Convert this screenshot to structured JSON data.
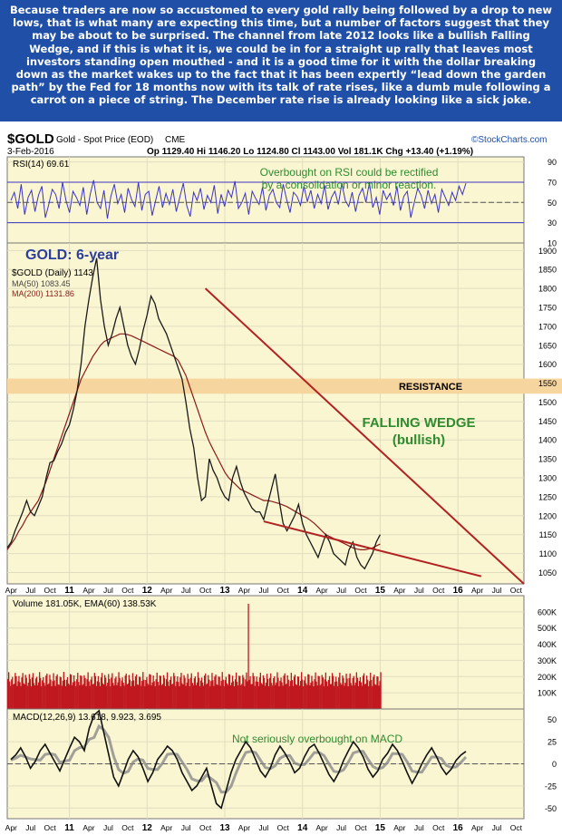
{
  "commentary": "Because traders are now so accustomed to every gold rally being followed by a drop to new lows, that is what many are expecting this time, but a number of factors suggest that they may be about to be surprised. The channel from late 2012 looks like a bullish Falling Wedge, and if this is what it is, we could be in for a straight up rally that leaves most investors standing open mouthed - and it is a good time for it with the dollar breaking down as the market wakes up to the fact that it has been expertly “lead down the garden path” by the Fed for 18 months now with its talk of rate rises, like a dumb mule following a carrot on a piece of string. The December rate rise is already looking like a sick joke.",
  "header": {
    "symbol": "$GOLD",
    "name": "Gold - Spot Price (EOD)",
    "exchange": "CME",
    "date": "3-Feb-2016",
    "quote": "Op 1129.40  Hi 1146.20  Lo 1124.80  Cl 1143.00  Vol 181.1K  Chg +13.40 (+1.19%)",
    "source": "©StockCharts.com",
    "arrow": "▲"
  },
  "colors": {
    "panel_bg": "#fbf6d2",
    "banner_bg": "#1f4fa6",
    "price": "#1a1a1a",
    "ma200": "#8b1a1a",
    "trendline": "#b22222",
    "resistance": "#f6d59e",
    "volume": "#c0181f",
    "rsi": "#3b33c6",
    "annotation_green": "#2e8b2e",
    "title_blue": "#2c3e9c"
  },
  "chart_data": [
    {
      "panel": "rsi",
      "type": "line",
      "series": [
        {
          "name": "RSI(14)",
          "last": 69.61
        }
      ],
      "legend": "RSI(14) 69.61",
      "ylim": [
        10,
        95
      ],
      "yticks": [
        90,
        70,
        50,
        30,
        10
      ],
      "reference_lines": [
        70,
        50,
        30
      ],
      "annotation": [
        "Overbought on RSI could be rectified",
        "by a consolidation or minor reaction."
      ],
      "rsi_samples": [
        52,
        60,
        44,
        68,
        38,
        55,
        62,
        41,
        57,
        66,
        35,
        48,
        63,
        58,
        44,
        70,
        52,
        40,
        61,
        55,
        47,
        65,
        38,
        58,
        72,
        50,
        44,
        62,
        34,
        56,
        68,
        49,
        58,
        40,
        64,
        53,
        46,
        70,
        42,
        58,
        61,
        37,
        52,
        66,
        45,
        59,
        48,
        63,
        41,
        55,
        69,
        47,
        36,
        60,
        52,
        64,
        43,
        57,
        50,
        67,
        39,
        58,
        46,
        62,
        55,
        71,
        44,
        50,
        59,
        38,
        61,
        54,
        48,
        65,
        42,
        57,
        63,
        50,
        45,
        68,
        53,
        40,
        60,
        56,
        47,
        66,
        51,
        62,
        44,
        58,
        49,
        67,
        43,
        55,
        61,
        48,
        69,
        52,
        46,
        60,
        41,
        57,
        64,
        50,
        70,
        45,
        55,
        38,
        62,
        53,
        59,
        47,
        66,
        42,
        56,
        61,
        35,
        50,
        64,
        57,
        44,
        62,
        49,
        58,
        40,
        63,
        55,
        47,
        60,
        52,
        66,
        58,
        69
      ]
    },
    {
      "panel": "price",
      "type": "line",
      "title": "GOLD: 6-year",
      "legend": [
        {
          "name": "$GOLD (Daily)",
          "last": 1143.0
        },
        {
          "name": "MA(50)",
          "last": 1083.45
        },
        {
          "name": "MA(200)",
          "last": 1131.86
        }
      ],
      "ylim": [
        1020,
        1920
      ],
      "yticks": [
        1900,
        1850,
        1800,
        1750,
        1700,
        1650,
        1600,
        1550,
        1500,
        1450,
        1400,
        1350,
        1300,
        1250,
        1200,
        1150,
        1100,
        1050
      ],
      "x_start": 2010.2,
      "x_end": 2016.85,
      "x_step": 0.05,
      "prices": [
        1115,
        1130,
        1160,
        1185,
        1210,
        1240,
        1210,
        1200,
        1225,
        1250,
        1300,
        1340,
        1345,
        1370,
        1390,
        1420,
        1440,
        1480,
        1530,
        1600,
        1700,
        1770,
        1830,
        1880,
        1770,
        1700,
        1650,
        1680,
        1720,
        1750,
        1700,
        1650,
        1620,
        1600,
        1640,
        1690,
        1730,
        1780,
        1760,
        1720,
        1700,
        1680,
        1650,
        1620,
        1590,
        1560,
        1500,
        1430,
        1380,
        1300,
        1240,
        1250,
        1350,
        1320,
        1300,
        1270,
        1250,
        1240,
        1300,
        1330,
        1290,
        1260,
        1240,
        1220,
        1210,
        1210,
        1190,
        1230,
        1270,
        1310,
        1240,
        1180,
        1160,
        1180,
        1200,
        1230,
        1180,
        1150,
        1130,
        1110,
        1090,
        1120,
        1150,
        1130,
        1100,
        1090,
        1080,
        1070,
        1110,
        1130,
        1090,
        1070,
        1060,
        1080,
        1100,
        1130,
        1150
      ],
      "ma200": [
        1110,
        1125,
        1140,
        1160,
        1175,
        1195,
        1210,
        1225,
        1240,
        1265,
        1290,
        1320,
        1350,
        1380,
        1410,
        1440,
        1470,
        1500,
        1530,
        1560,
        1580,
        1600,
        1620,
        1635,
        1650,
        1660,
        1665,
        1670,
        1675,
        1680,
        1680,
        1678,
        1675,
        1670,
        1665,
        1660,
        1655,
        1650,
        1645,
        1640,
        1635,
        1630,
        1625,
        1620,
        1610,
        1590,
        1570,
        1540,
        1510,
        1480,
        1450,
        1420,
        1395,
        1375,
        1355,
        1335,
        1315,
        1300,
        1290,
        1280,
        1270,
        1265,
        1260,
        1255,
        1250,
        1245,
        1240,
        1240,
        1238,
        1235,
        1232,
        1228,
        1224,
        1218,
        1212,
        1206,
        1200,
        1195,
        1188,
        1180,
        1170,
        1160,
        1150,
        1145,
        1140,
        1135,
        1130,
        1125,
        1120,
        1115,
        1112,
        1110,
        1110,
        1112,
        1115,
        1120,
        1125
      ],
      "annotations": [
        {
          "text": "RESISTANCE",
          "band": [
            1522,
            1562
          ]
        },
        {
          "text": "FALLING WEDGE",
          "sub": "(bullish)"
        }
      ],
      "trendlines": [
        {
          "from": [
            2012.75,
            1800
          ],
          "to": [
            2016.85,
            1020
          ]
        },
        {
          "from": [
            2013.5,
            1185
          ],
          "to": [
            2016.3,
            1040
          ]
        }
      ],
      "x_tick_labels": [
        "Apr",
        "Jul",
        "Oct",
        "11",
        "Apr",
        "Jul",
        "Oct",
        "12",
        "Apr",
        "Jul",
        "Oct",
        "13",
        "Apr",
        "Jul",
        "Oct",
        "14",
        "Apr",
        "Jul",
        "Oct",
        "15",
        "Apr",
        "Jul",
        "Oct",
        "16",
        "Apr",
        "Jul",
        "Oct"
      ]
    },
    {
      "panel": "volume",
      "type": "bar",
      "legend": "Volume 181.05K, EMA(60) 138.53K",
      "series": [
        {
          "name": "Volume",
          "last": 181050
        },
        {
          "name": "EMA(60)",
          "last": 138530
        }
      ],
      "ylim": [
        0,
        700000
      ],
      "yticks": [
        "600K",
        "500K",
        "400K",
        "300K",
        "200K",
        "100K"
      ],
      "ytick_values": [
        600000,
        500000,
        400000,
        300000,
        200000,
        100000
      ],
      "spike": {
        "x": 2013.3,
        "value": 650000
      },
      "typical_range": [
        140000,
        230000
      ]
    },
    {
      "panel": "macd",
      "type": "line",
      "legend": "MACD(12,26,9) 13.618, 9.923, 3.695",
      "series": [
        {
          "name": "MACD",
          "last": 13.618
        },
        {
          "name": "Signal",
          "last": 9.923
        },
        {
          "name": "Histogram",
          "last": 3.695
        }
      ],
      "ylim": [
        -62,
        62
      ],
      "yticks": [
        50,
        25,
        0,
        -25,
        -50
      ],
      "annotation": "Not seriously overbought on MACD",
      "macd_samples": [
        5,
        10,
        18,
        8,
        -5,
        3,
        15,
        22,
        12,
        2,
        -8,
        5,
        18,
        30,
        25,
        15,
        40,
        55,
        60,
        35,
        10,
        -15,
        -25,
        -10,
        5,
        15,
        8,
        -5,
        -20,
        -10,
        5,
        12,
        20,
        15,
        5,
        -10,
        -20,
        -30,
        -25,
        -15,
        -5,
        -25,
        -45,
        -50,
        -30,
        -10,
        5,
        15,
        25,
        18,
        5,
        -8,
        -15,
        -5,
        10,
        20,
        12,
        2,
        -10,
        -5,
        8,
        18,
        22,
        12,
        0,
        -12,
        -20,
        -10,
        4,
        15,
        25,
        18,
        8,
        -6,
        -15,
        -8,
        5,
        12,
        22,
        15,
        3,
        -10,
        -22,
        -12,
        0,
        10,
        18,
        8,
        -4,
        -12,
        -6,
        4,
        10,
        14
      ]
    }
  ]
}
